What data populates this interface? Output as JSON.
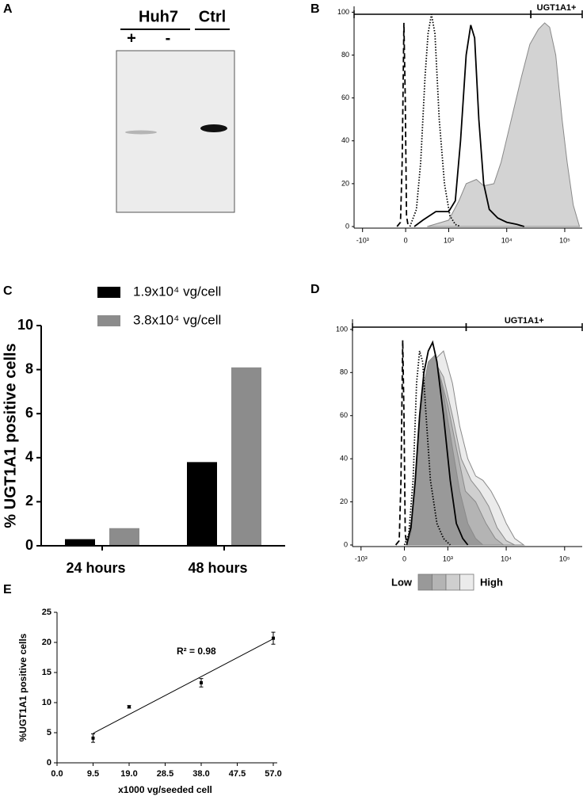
{
  "chart_data": [
    {
      "type": "blot",
      "panel": "A",
      "groups": [
        "Huh7",
        "Ctrl"
      ],
      "lanes": [
        "+",
        "-"
      ]
    },
    {
      "type": "flow",
      "panel": "B",
      "xscale": "biexponential",
      "xlim": [
        -1400,
        200000
      ],
      "ylim": [
        0,
        102
      ],
      "xticks": [
        {
          "value": -1000,
          "label": "-10³"
        },
        0,
        {
          "value": 1000,
          "label": "10³"
        },
        {
          "value": 10000,
          "label": "10⁴"
        },
        {
          "value": 100000,
          "label": "10⁵"
        }
      ],
      "yticks": [
        0,
        20,
        40,
        60,
        80,
        100
      ],
      "gates": [
        {
          "range": [
            -1400,
            26000
          ]
        },
        {
          "range": [
            26000,
            200000
          ],
          "label": "UGT1A1+"
        }
      ],
      "series": [
        {
          "style": "filled",
          "color": "#d3d3d3",
          "x": [
            500,
            1000,
            1500,
            2000,
            3000,
            4000,
            6000,
            8000,
            12000,
            18000,
            25000,
            35000,
            45000,
            55000,
            70000,
            90000,
            110000,
            140000,
            180000
          ],
          "values": [
            0,
            3,
            12,
            20,
            22,
            19,
            20,
            30,
            50,
            70,
            85,
            92,
            95,
            93,
            80,
            50,
            30,
            10,
            0
          ]
        },
        {
          "style": "dashed",
          "color": "#000000",
          "x": [
            -200,
            -120,
            -80,
            -40,
            -10,
            20,
            60
          ],
          "values": [
            0,
            2,
            30,
            95,
            60,
            5,
            0
          ]
        },
        {
          "style": "dotted",
          "color": "#000000",
          "x": [
            100,
            250,
            350,
            450,
            520,
            600,
            680,
            780,
            900,
            1050,
            1300,
            1600
          ],
          "values": [
            0,
            8,
            30,
            70,
            90,
            99,
            90,
            50,
            20,
            5,
            1,
            0
          ]
        },
        {
          "style": "solid",
          "color": "#000000",
          "x": [
            200,
            400,
            700,
            1000,
            1300,
            1600,
            2000,
            2400,
            2800,
            3300,
            4000,
            5000,
            7000,
            10000,
            15000,
            20000
          ],
          "values": [
            0,
            3,
            7,
            7,
            12,
            40,
            80,
            94,
            88,
            50,
            20,
            8,
            4,
            2,
            1,
            0
          ]
        }
      ]
    },
    {
      "type": "bar",
      "panel": "C",
      "ylabel": "% UGT1A1 positive cells",
      "categories": [
        "24 hours",
        "48 hours"
      ],
      "ylim": [
        0,
        10
      ],
      "yticks": [
        0,
        2,
        4,
        6,
        8,
        10
      ],
      "series": [
        {
          "name": "1.9x10⁴ vg/cell",
          "color": "#000000",
          "values": [
            0.3,
            3.8
          ]
        },
        {
          "name": "3.8x10⁴ vg/cell",
          "color": "#8c8c8c",
          "values": [
            0.8,
            8.1
          ]
        }
      ]
    },
    {
      "type": "flow",
      "panel": "D",
      "xscale": "biexponential",
      "xlim": [
        -1400,
        200000
      ],
      "ylim": [
        0,
        104
      ],
      "xticks": [
        {
          "value": -1000,
          "label": "-10³"
        },
        0,
        {
          "value": 1000,
          "label": "10³"
        },
        {
          "value": 10000,
          "label": "10⁴"
        },
        {
          "value": 100000,
          "label": "10⁵"
        }
      ],
      "yticks": [
        0,
        20,
        40,
        60,
        80,
        100
      ],
      "gates": [
        {
          "range": [
            -1400,
            2060
          ]
        },
        {
          "range": [
            2060,
            200000
          ],
          "label": "UGT1A1+"
        }
      ],
      "colorbar": [
        "Low",
        "High"
      ],
      "series": [
        {
          "style": "filled",
          "color": "#ebebeb",
          "x": [
            50,
            250,
            450,
            650,
            900,
            1200,
            1600,
            2200,
            3000,
            4000,
            5500,
            7500,
            10000,
            14000,
            20000
          ],
          "values": [
            0,
            20,
            65,
            85,
            90,
            75,
            55,
            40,
            32,
            30,
            25,
            18,
            10,
            3,
            0
          ]
        },
        {
          "style": "filled",
          "color": "#cfcfcf",
          "x": [
            50,
            200,
            350,
            500,
            700,
            900,
            1200,
            1700,
            2500,
            3500,
            5000,
            7000,
            10000,
            14000
          ],
          "values": [
            0,
            10,
            40,
            70,
            85,
            78,
            60,
            40,
            30,
            25,
            18,
            8,
            2,
            0
          ]
        },
        {
          "style": "filled",
          "color": "#b4b4b4",
          "x": [
            50,
            200,
            350,
            500,
            650,
            800,
            1000,
            1400,
            2000,
            3000,
            4500,
            6500,
            9000
          ],
          "values": [
            0,
            15,
            50,
            75,
            85,
            80,
            65,
            45,
            25,
            20,
            10,
            3,
            0
          ]
        },
        {
          "style": "filled",
          "color": "#999999",
          "x": [
            50,
            150,
            250,
            350,
            450,
            550,
            700,
            900,
            1200,
            1600,
            2200,
            3000,
            4000
          ],
          "values": [
            0,
            5,
            25,
            55,
            75,
            85,
            88,
            70,
            45,
            25,
            10,
            3,
            0
          ]
        },
        {
          "style": "dashed",
          "color": "#000000",
          "x": [
            -200,
            -120,
            -80,
            -40,
            -10,
            20,
            60
          ],
          "values": [
            0,
            2,
            30,
            95,
            60,
            5,
            0
          ]
        },
        {
          "style": "dotted",
          "color": "#000000",
          "x": [
            0,
            100,
            200,
            280,
            350,
            420,
            500,
            600,
            750,
            900,
            1100
          ],
          "values": [
            0,
            5,
            30,
            75,
            90,
            85,
            60,
            30,
            10,
            3,
            0
          ]
        },
        {
          "style": "solid",
          "color": "#000000",
          "x": [
            50,
            150,
            250,
            350,
            450,
            550,
            650,
            750,
            900,
            1100,
            1400,
            1800,
            2200
          ],
          "values": [
            0,
            8,
            30,
            60,
            80,
            90,
            94,
            85,
            60,
            30,
            10,
            3,
            0
          ]
        }
      ]
    },
    {
      "type": "scatter",
      "panel": "E",
      "xlabel": "x1000 vg/seeded cell",
      "ylabel": "%UGT1A1 positive cells",
      "annotation": "R² = 0.98",
      "xlim": [
        0,
        57
      ],
      "ylim": [
        0,
        25
      ],
      "xticks": [
        {
          "value": 0,
          "label": "0.0"
        },
        9.5,
        {
          "value": 19,
          "label": "19.0"
        },
        28.5,
        {
          "value": 38,
          "label": "38.0"
        },
        47.5,
        {
          "value": 57,
          "label": "57.0"
        }
      ],
      "yticks": [
        0,
        5,
        10,
        15,
        20,
        25
      ],
      "x": [
        9.5,
        19,
        38,
        57
      ],
      "values": [
        4.1,
        9.3,
        13.3,
        20.7
      ],
      "errors": [
        0.7,
        0.2,
        0.7,
        1.0
      ],
      "fit": {
        "x": [
          9.5,
          57
        ],
        "values": [
          4.9,
          20.6
        ]
      }
    }
  ]
}
